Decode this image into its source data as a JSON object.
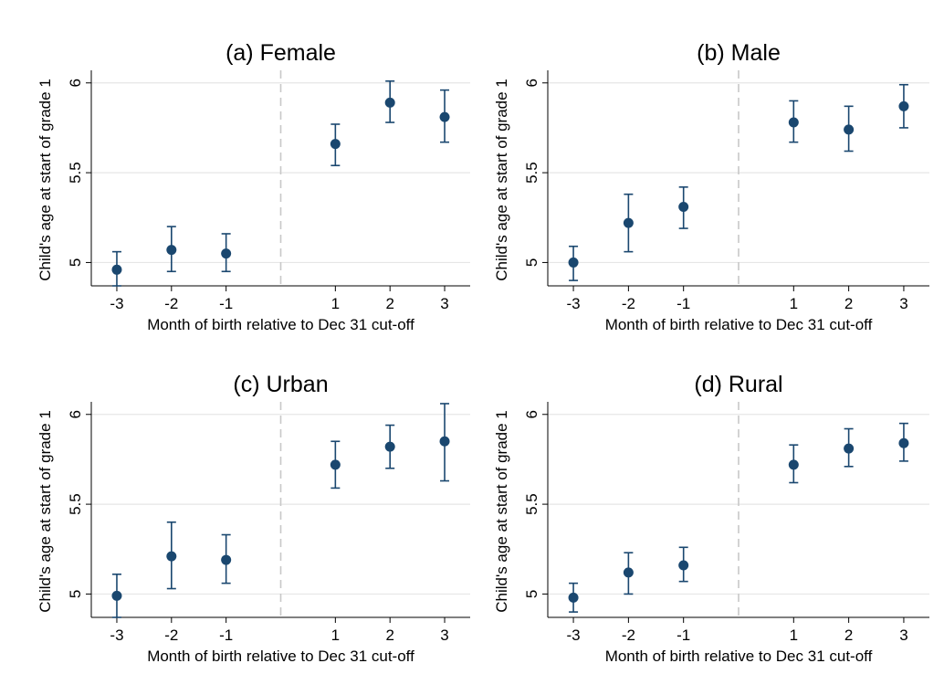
{
  "figure": {
    "background": "#ffffff",
    "marker_color": "#1a476f",
    "grid_color": "#e6e6e6",
    "cutoff_line_color": "#c8c8c8"
  },
  "chart_data": [
    {
      "type": "scatter",
      "title": "(a) Female",
      "xlabel": "Month of birth relative to Dec 31 cut-off",
      "ylabel": "Child's age at start of grade 1",
      "x": [
        -3,
        -2,
        -1,
        1,
        2,
        3
      ],
      "x_tick_labels": [
        "-3",
        "-2",
        "-1",
        "1",
        "2",
        "3"
      ],
      "y_ticks": [
        5,
        5.5,
        6
      ],
      "y_tick_labels": [
        "5",
        "5.5",
        "6"
      ],
      "ylim": [
        4.87,
        6.07
      ],
      "y": [
        4.96,
        5.07,
        5.05,
        5.66,
        5.89,
        5.81
      ],
      "ci_low": [
        4.87,
        4.95,
        4.95,
        5.54,
        5.78,
        5.67
      ],
      "ci_high": [
        5.06,
        5.2,
        5.16,
        5.77,
        6.01,
        5.96
      ],
      "cutoff_x": 0,
      "grid": true,
      "error_bars": true
    },
    {
      "type": "scatter",
      "title": "(b) Male",
      "xlabel": "Month of birth relative to Dec 31 cut-off",
      "ylabel": "Child's age at start of grade 1",
      "x": [
        -3,
        -2,
        -1,
        1,
        2,
        3
      ],
      "x_tick_labels": [
        "-3",
        "-2",
        "-1",
        "1",
        "2",
        "3"
      ],
      "y_ticks": [
        5,
        5.5,
        6
      ],
      "y_tick_labels": [
        "5",
        "5.5",
        "6"
      ],
      "ylim": [
        4.87,
        6.07
      ],
      "y": [
        5.0,
        5.22,
        5.31,
        5.78,
        5.74,
        5.87
      ],
      "ci_low": [
        4.9,
        5.06,
        5.19,
        5.67,
        5.62,
        5.75
      ],
      "ci_high": [
        5.09,
        5.38,
        5.42,
        5.9,
        5.87,
        5.99
      ],
      "cutoff_x": 0,
      "grid": true,
      "error_bars": true
    },
    {
      "type": "scatter",
      "title": "(c) Urban",
      "xlabel": "Month of birth relative to Dec 31 cut-off",
      "ylabel": "Child's age at start of grade 1",
      "x": [
        -3,
        -2,
        -1,
        1,
        2,
        3
      ],
      "x_tick_labels": [
        "-3",
        "-2",
        "-1",
        "1",
        "2",
        "3"
      ],
      "y_ticks": [
        5,
        5.5,
        6
      ],
      "y_tick_labels": [
        "5",
        "5.5",
        "6"
      ],
      "ylim": [
        4.87,
        6.07
      ],
      "y": [
        4.99,
        5.21,
        5.19,
        5.72,
        5.82,
        5.85
      ],
      "ci_low": [
        4.87,
        5.03,
        5.06,
        5.59,
        5.7,
        5.63
      ],
      "ci_high": [
        5.11,
        5.4,
        5.33,
        5.85,
        5.94,
        6.06
      ],
      "cutoff_x": 0,
      "grid": true,
      "error_bars": true
    },
    {
      "type": "scatter",
      "title": "(d) Rural",
      "xlabel": "Month of birth relative to Dec 31 cut-off",
      "ylabel": "Child's age at start of grade 1",
      "x": [
        -3,
        -2,
        -1,
        1,
        2,
        3
      ],
      "x_tick_labels": [
        "-3",
        "-2",
        "-1",
        "1",
        "2",
        "3"
      ],
      "y_ticks": [
        5,
        5.5,
        6
      ],
      "y_tick_labels": [
        "5",
        "5.5",
        "6"
      ],
      "ylim": [
        4.87,
        6.07
      ],
      "y": [
        4.98,
        5.12,
        5.16,
        5.72,
        5.81,
        5.84
      ],
      "ci_low": [
        4.9,
        5.0,
        5.07,
        5.62,
        5.71,
        5.74
      ],
      "ci_high": [
        5.06,
        5.23,
        5.26,
        5.83,
        5.92,
        5.95
      ],
      "cutoff_x": 0,
      "grid": true,
      "error_bars": true
    }
  ]
}
